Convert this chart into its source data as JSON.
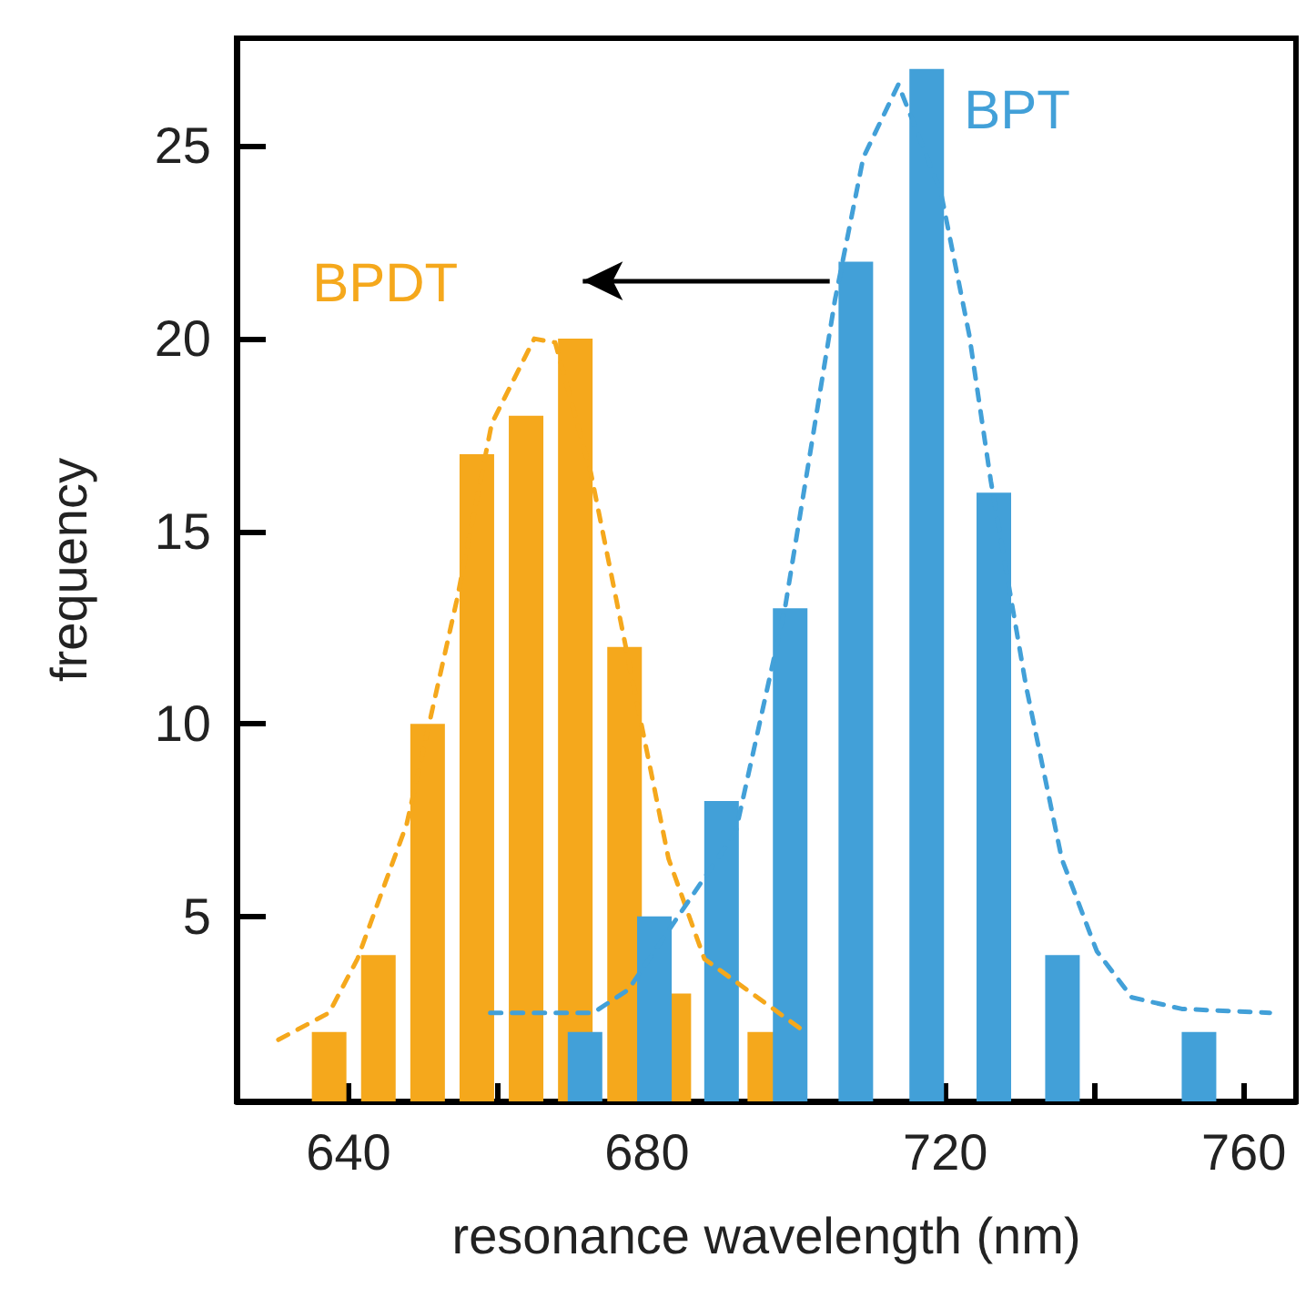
{
  "chart_data": {
    "type": "bar",
    "xlabel": "resonance wavelength (nm)",
    "ylabel": "frequency",
    "xlim": [
      625,
      767
    ],
    "xticks": [
      640,
      {
        "value": 660,
        "label": null
      },
      680,
      {
        "value": 700,
        "label": null
      },
      720,
      {
        "value": 740,
        "label": null
      },
      760
    ],
    "ylim": [
      0.2,
      27.8
    ],
    "yticks": [
      5,
      10,
      15,
      20,
      25
    ],
    "grid": false,
    "legend": false,
    "series": [
      {
        "name": "BPDT",
        "color": "#f5a81c",
        "x": [
          637.4,
          644,
          650.6,
          657.2,
          663.8,
          670.4,
          677,
          683.6,
          695.8
        ],
        "values": [
          2,
          4,
          10,
          17,
          18,
          20,
          12,
          3,
          2
        ]
      },
      {
        "name": "BPT",
        "color": "#42a0d8",
        "x": [
          671.7,
          681,
          690,
          699.2,
          708,
          717.5,
          726.5,
          735.7,
          754
        ],
        "values": [
          2,
          5,
          8,
          13,
          22,
          27,
          16,
          4,
          2
        ]
      },
      {
        "type": "line",
        "color": "#f5a81c",
        "line_style": "dashed",
        "marker": "none",
        "x": [
          630.6,
          637.4,
          641.2,
          647.8,
          654.5,
          659.2,
          664.9,
          667.7,
          672.5,
          678.2,
          682.9,
          687.7,
          700.5
        ],
        "values": [
          1.8,
          2.5,
          3.9,
          7.4,
          13.2,
          17.8,
          20,
          19.9,
          16.5,
          11,
          6.5,
          3.9,
          2.1
        ]
      },
      {
        "type": "line",
        "color": "#42a0d8",
        "line_style": "dashed",
        "marker": "none",
        "x": [
          659,
          672.8,
          677.5,
          691.9,
          698.5,
          705.2,
          709,
          713.7,
          719.4,
          723.2,
          726.1,
          730.8,
          735.6,
          740.3,
          745,
          751.7,
          763.5
        ],
        "values": [
          2.5,
          2.5,
          3.1,
          7.2,
          13,
          21,
          24.7,
          26.6,
          23.8,
          20.1,
          16.3,
          11,
          6.5,
          4.1,
          2.9,
          2.6,
          2.5
        ]
      }
    ]
  }
}
